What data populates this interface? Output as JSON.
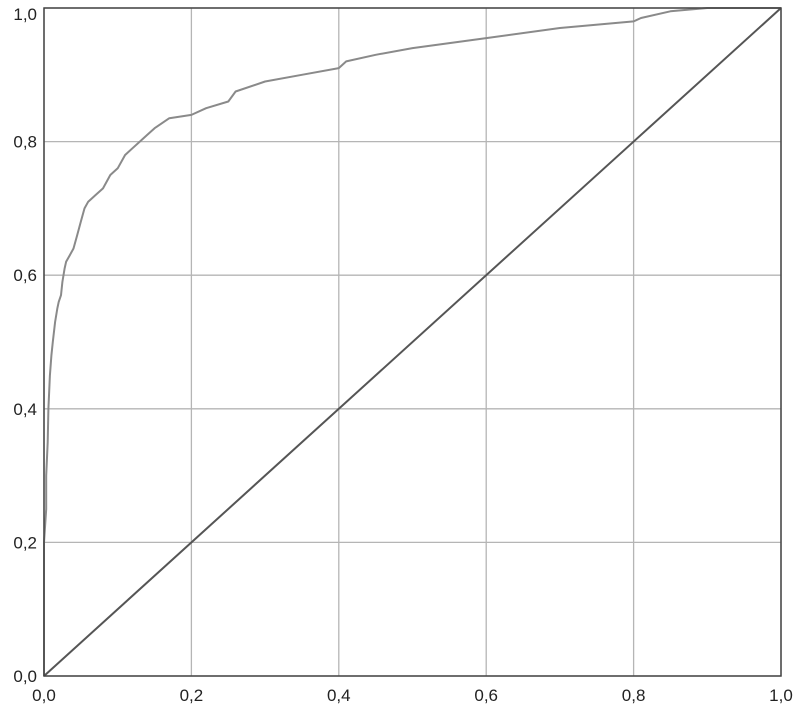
{
  "chart_data": {
    "type": "line",
    "title": "",
    "xlabel": "",
    "ylabel": "",
    "xlim": [
      0,
      1
    ],
    "ylim": [
      0,
      1
    ],
    "grid": true,
    "legend": "none",
    "x_ticks": [
      0,
      0.2,
      0.4,
      0.6,
      0.8,
      1.0
    ],
    "y_ticks": [
      0,
      0.2,
      0.4,
      0.6,
      0.8,
      1.0
    ],
    "x_tick_labels": [
      "0,0",
      "0,2",
      "0,4",
      "0,6",
      "0,8",
      "1,0"
    ],
    "y_tick_labels": [
      "0,0",
      "0,2",
      "0,4",
      "0,6",
      "0,8",
      "1,0"
    ],
    "colors": {
      "curve": "#8a8a8a",
      "reference": "#555555",
      "grid": "#b5b5b5",
      "frame": "#444444"
    },
    "series": [
      {
        "x": [
          0.0,
          0.0,
          0.003,
          0.003,
          0.005,
          0.006,
          0.008,
          0.01,
          0.012,
          0.015,
          0.018,
          0.02,
          0.023,
          0.025,
          0.028,
          0.03,
          0.035,
          0.04,
          0.045,
          0.05,
          0.055,
          0.06,
          0.07,
          0.08,
          0.09,
          0.1,
          0.11,
          0.12,
          0.13,
          0.14,
          0.15,
          0.17,
          0.2,
          0.22,
          0.25,
          0.26,
          0.3,
          0.35,
          0.4,
          0.41,
          0.45,
          0.5,
          0.6,
          0.7,
          0.8,
          0.81,
          0.85,
          0.9,
          0.95,
          1.0
        ],
        "y": [
          0.0,
          0.2,
          0.25,
          0.3,
          0.35,
          0.4,
          0.45,
          0.48,
          0.5,
          0.53,
          0.55,
          0.56,
          0.57,
          0.59,
          0.61,
          0.62,
          0.63,
          0.64,
          0.66,
          0.68,
          0.7,
          0.71,
          0.72,
          0.73,
          0.75,
          0.76,
          0.78,
          0.79,
          0.8,
          0.81,
          0.82,
          0.835,
          0.84,
          0.85,
          0.86,
          0.875,
          0.89,
          0.9,
          0.91,
          0.92,
          0.93,
          0.94,
          0.955,
          0.97,
          0.98,
          0.985,
          0.995,
          1.0,
          1.0,
          1.0
        ]
      },
      {
        "x": [
          0,
          1
        ],
        "y": [
          0,
          1
        ]
      }
    ]
  }
}
